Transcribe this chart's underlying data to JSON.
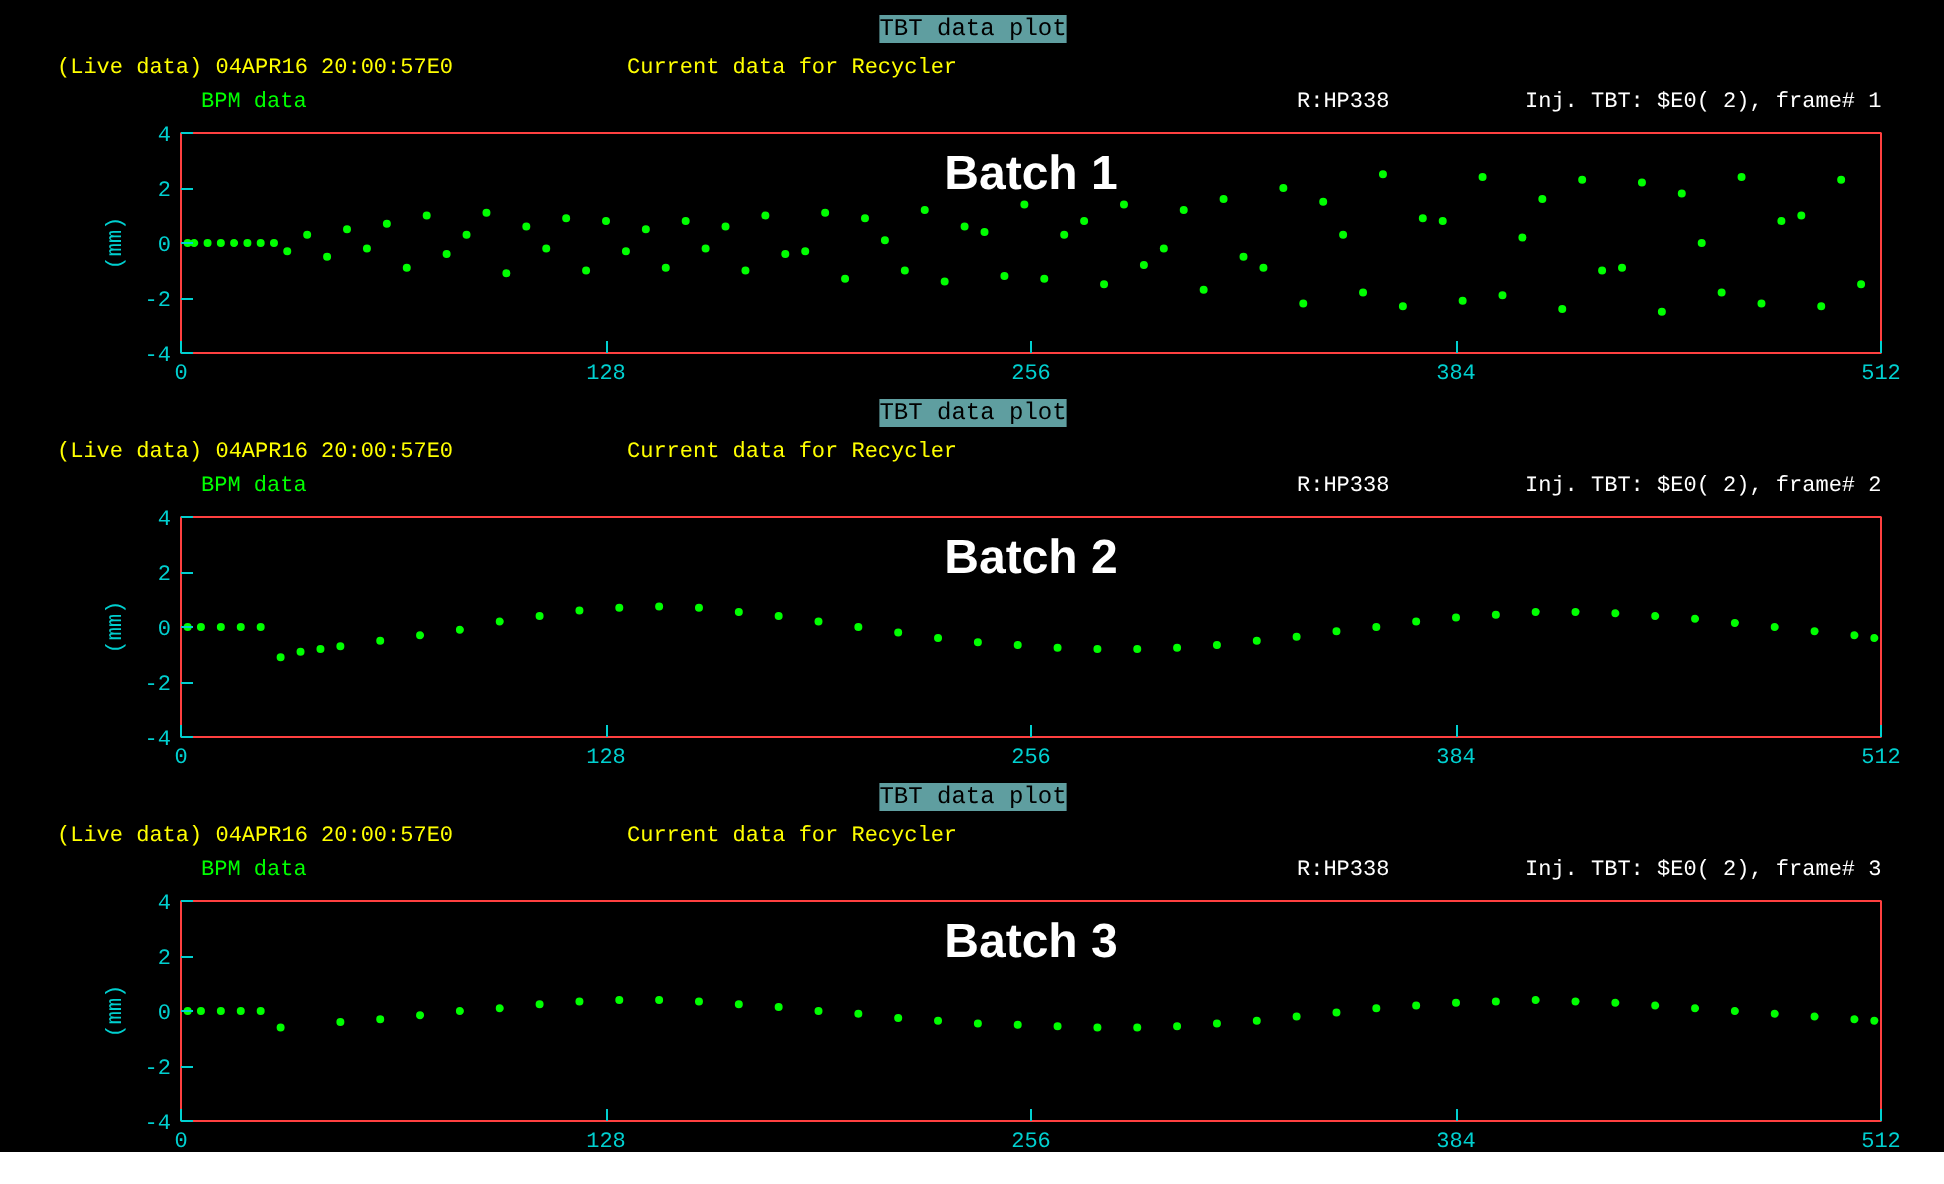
{
  "chart_data": [
    {
      "type": "scatter",
      "title": "TBT data plot",
      "subtitle": "(Live data) 04APR16 20:00:57E0",
      "annotations": [
        "Current data for Recycler",
        "BPM data",
        "R:HP338",
        "Inj. TBT: $E0( 2), frame# 1",
        "Batch 1"
      ],
      "ylabel": "(mm)",
      "xlim": [
        0,
        512
      ],
      "xticks": [
        0,
        128,
        256,
        384,
        512
      ],
      "ylim": [
        -4,
        4
      ],
      "yticks": [
        -4,
        -2,
        0,
        2,
        4
      ],
      "grid": false,
      "marker": "circle",
      "series": [
        {
          "color": "#00ff00",
          "x": [
            2,
            4,
            8,
            12,
            16,
            20,
            24,
            28,
            32,
            38,
            44,
            50,
            56,
            62,
            68,
            74,
            80,
            86,
            92,
            98,
            104,
            110,
            116,
            122,
            128,
            134,
            140,
            146,
            152,
            158,
            164,
            170,
            176,
            182,
            188,
            194,
            200,
            206,
            212,
            218,
            224,
            230,
            236,
            242,
            248,
            254,
            260,
            266,
            272,
            278,
            284,
            290,
            296,
            302,
            308,
            314,
            320,
            326,
            332,
            338,
            344,
            350,
            356,
            362,
            368,
            374,
            380,
            386,
            392,
            398,
            404,
            410,
            416,
            422,
            428,
            434,
            440,
            446,
            452,
            458,
            464,
            470,
            476,
            482,
            488,
            494,
            500,
            506
          ],
          "values": [
            0,
            0,
            0,
            0,
            0,
            0,
            0,
            0,
            -0.3,
            0.3,
            -0.5,
            0.5,
            -0.2,
            0.7,
            -0.9,
            1.0,
            -0.4,
            0.3,
            1.1,
            -1.1,
            0.6,
            -0.2,
            0.9,
            -1.0,
            0.8,
            -0.3,
            0.5,
            -0.9,
            0.8,
            -0.2,
            0.6,
            -1.0,
            1.0,
            -0.4,
            -0.3,
            1.1,
            -1.3,
            0.9,
            0.1,
            -1.0,
            1.2,
            -1.4,
            0.6,
            0.4,
            -1.2,
            1.4,
            -1.3,
            0.3,
            0.8,
            -1.5,
            1.4,
            -0.8,
            -0.2,
            1.2,
            -1.7,
            1.6,
            -0.5,
            -0.9,
            2.0,
            -2.2,
            1.5,
            0.3,
            -1.8,
            2.5,
            -2.3,
            0.9,
            0.8,
            -2.1,
            2.4,
            -1.9,
            0.2,
            1.6,
            -2.4,
            2.3,
            -1.0,
            -0.9,
            2.2,
            -2.5,
            1.8,
            0.0,
            -1.8,
            2.4,
            -2.2,
            0.8,
            1.0,
            -2.3,
            2.3,
            -1.5
          ]
        }
      ]
    },
    {
      "type": "scatter",
      "title": "TBT data plot",
      "subtitle": "(Live data) 04APR16 20:00:57E0",
      "annotations": [
        "Current data for Recycler",
        "BPM data",
        "R:HP338",
        "Inj. TBT: $E0( 2), frame# 2",
        "Batch 2"
      ],
      "ylabel": "(mm)",
      "xlim": [
        0,
        512
      ],
      "xticks": [
        0,
        128,
        256,
        384,
        512
      ],
      "ylim": [
        -4,
        4
      ],
      "yticks": [
        -4,
        -2,
        0,
        2,
        4
      ],
      "grid": false,
      "marker": "circle",
      "series": [
        {
          "color": "#00ff00",
          "x": [
            2,
            6,
            12,
            18,
            24,
            30,
            36,
            42,
            48,
            60,
            72,
            84,
            96,
            108,
            120,
            132,
            144,
            156,
            168,
            180,
            192,
            204,
            216,
            228,
            240,
            252,
            264,
            276,
            288,
            300,
            312,
            324,
            336,
            348,
            360,
            372,
            384,
            396,
            408,
            420,
            432,
            444,
            456,
            468,
            480,
            492,
            504,
            510
          ],
          "values": [
            0,
            0,
            0,
            0,
            0,
            -1.1,
            -0.9,
            -0.8,
            -0.7,
            -0.5,
            -0.3,
            -0.1,
            0.2,
            0.4,
            0.6,
            0.7,
            0.75,
            0.7,
            0.55,
            0.4,
            0.2,
            0.0,
            -0.2,
            -0.4,
            -0.55,
            -0.65,
            -0.75,
            -0.8,
            -0.8,
            -0.75,
            -0.65,
            -0.5,
            -0.35,
            -0.15,
            0.0,
            0.2,
            0.35,
            0.45,
            0.55,
            0.55,
            0.5,
            0.4,
            0.3,
            0.15,
            0.0,
            -0.15,
            -0.3,
            -0.4
          ]
        }
      ]
    },
    {
      "type": "scatter",
      "title": "TBT data plot",
      "subtitle": "(Live data) 04APR16 20:00:57E0",
      "annotations": [
        "Current data for Recycler",
        "BPM data",
        "R:HP338",
        "Inj. TBT: $E0( 2), frame# 3",
        "Batch 3"
      ],
      "ylabel": "(mm)",
      "xlim": [
        0,
        512
      ],
      "xticks": [
        0,
        128,
        256,
        384,
        512
      ],
      "ylim": [
        -4,
        4
      ],
      "yticks": [
        -4,
        -2,
        0,
        2,
        4
      ],
      "grid": false,
      "marker": "circle",
      "series": [
        {
          "color": "#00ff00",
          "x": [
            2,
            6,
            12,
            18,
            24,
            30,
            48,
            60,
            72,
            84,
            96,
            108,
            120,
            132,
            144,
            156,
            168,
            180,
            192,
            204,
            216,
            228,
            240,
            252,
            264,
            276,
            288,
            300,
            312,
            324,
            336,
            348,
            360,
            372,
            384,
            396,
            408,
            420,
            432,
            444,
            456,
            468,
            480,
            492,
            504,
            510
          ],
          "values": [
            0,
            0,
            0,
            0,
            0,
            -0.6,
            -0.4,
            -0.3,
            -0.15,
            0,
            0.1,
            0.25,
            0.35,
            0.4,
            0.4,
            0.35,
            0.25,
            0.15,
            0.0,
            -0.1,
            -0.25,
            -0.35,
            -0.45,
            -0.5,
            -0.55,
            -0.6,
            -0.6,
            -0.55,
            -0.45,
            -0.35,
            -0.2,
            -0.05,
            0.1,
            0.2,
            0.3,
            0.35,
            0.4,
            0.35,
            0.3,
            0.2,
            0.1,
            0.0,
            -0.1,
            -0.2,
            -0.3,
            -0.35
          ]
        }
      ]
    }
  ]
}
